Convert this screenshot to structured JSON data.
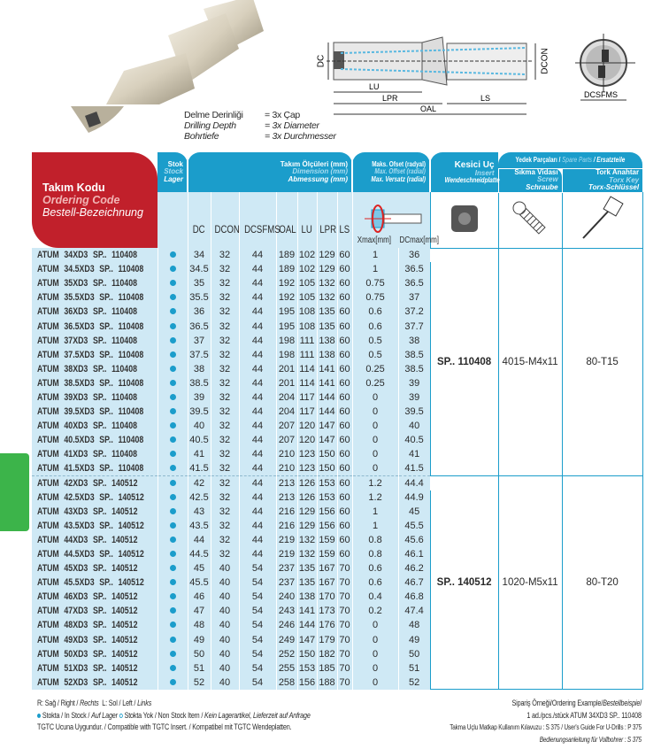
{
  "depth": {
    "rows": [
      {
        "label": "Delme Derinliği",
        "value": "= 3x Çap"
      },
      {
        "label": "Drilling Depth",
        "value": "= 3x Diameter"
      },
      {
        "label": "Bohrtiefe",
        "value": "= 3x Durchmesser"
      }
    ]
  },
  "diagram": {
    "labels": {
      "dc": "DC",
      "dcon": "DCON",
      "lu": "LU",
      "lpr": "LPR",
      "ls": "LS",
      "oal": "OAL",
      "dcsfms": "DCSFMS"
    }
  },
  "header": {
    "code": {
      "tr": "Takım Kodu",
      "en": "Ordering Code",
      "de": "Bestell-Bezeichnung"
    },
    "stock": {
      "tr": "Stok",
      "en": "Stock",
      "de": "Lager"
    },
    "dimension": {
      "tr": "Takım Ölçüleri (mm)",
      "en": "Dimension (mm)",
      "de": "Abmessung (mm)"
    },
    "offset": {
      "tr": "Maks. Ofset (radyal)",
      "en": "Max. Offset (radial)",
      "de": "Max. Versatz (radial)",
      "xmax": "Xmax[mm]",
      "dcmax": "DCmax[mm]"
    },
    "insert": {
      "tr": "Kesici Uç",
      "en": "Insert",
      "de": "Wendeschneidplatte"
    },
    "spare": {
      "tr": "Yedek Parçaları /",
      "en": "Spare Parts",
      "de": "/ Ersatzteile"
    },
    "screw": {
      "tr": "Sıkma Vidası",
      "en": "Screw",
      "de": "Schraube"
    },
    "key": {
      "tr": "Tork Anahtar",
      "en": "Torx Key",
      "de": "Torx-Schlüssel"
    },
    "columns": [
      "DC",
      "DCON",
      "DCSFMS",
      "OAL",
      "LU",
      "LPR",
      "LS"
    ]
  },
  "groups": [
    {
      "insert": "SP.. 110408",
      "screw": "4015-M4x11",
      "key": "80-T15",
      "rows": [
        [
          "ATUM 34XD3 SP.. 110408",
          "34",
          "32",
          "44",
          "189",
          "102",
          "129",
          "60",
          "1",
          "36"
        ],
        [
          "ATUM 34.5XD3 SP.. 110408",
          "34.5",
          "32",
          "44",
          "189",
          "102",
          "129",
          "60",
          "1",
          "36.5"
        ],
        [
          "ATUM 35XD3 SP.. 110408",
          "35",
          "32",
          "44",
          "192",
          "105",
          "132",
          "60",
          "0.75",
          "36.5"
        ],
        [
          "ATUM 35.5XD3 SP.. 110408",
          "35.5",
          "32",
          "44",
          "192",
          "105",
          "132",
          "60",
          "0.75",
          "37"
        ],
        [
          "ATUM 36XD3 SP.. 110408",
          "36",
          "32",
          "44",
          "195",
          "108",
          "135",
          "60",
          "0.6",
          "37.2"
        ],
        [
          "ATUM 36.5XD3 SP.. 110408",
          "36.5",
          "32",
          "44",
          "195",
          "108",
          "135",
          "60",
          "0.6",
          "37.7"
        ],
        [
          "ATUM 37XD3 SP.. 110408",
          "37",
          "32",
          "44",
          "198",
          "111",
          "138",
          "60",
          "0.5",
          "38"
        ],
        [
          "ATUM 37.5XD3 SP.. 110408",
          "37.5",
          "32",
          "44",
          "198",
          "111",
          "138",
          "60",
          "0.5",
          "38.5"
        ],
        [
          "ATUM 38XD3 SP.. 110408",
          "38",
          "32",
          "44",
          "201",
          "114",
          "141",
          "60",
          "0.25",
          "38.5"
        ],
        [
          "ATUM 38.5XD3 SP.. 110408",
          "38.5",
          "32",
          "44",
          "201",
          "114",
          "141",
          "60",
          "0.25",
          "39"
        ],
        [
          "ATUM 39XD3 SP.. 110408",
          "39",
          "32",
          "44",
          "204",
          "117",
          "144",
          "60",
          "0",
          "39"
        ],
        [
          "ATUM 39.5XD3 SP.. 110408",
          "39.5",
          "32",
          "44",
          "204",
          "117",
          "144",
          "60",
          "0",
          "39.5"
        ],
        [
          "ATUM 40XD3 SP.. 110408",
          "40",
          "32",
          "44",
          "207",
          "120",
          "147",
          "60",
          "0",
          "40"
        ],
        [
          "ATUM 40.5XD3 SP.. 110408",
          "40.5",
          "32",
          "44",
          "207",
          "120",
          "147",
          "60",
          "0",
          "40.5"
        ],
        [
          "ATUM 41XD3 SP.. 110408",
          "41",
          "32",
          "44",
          "210",
          "123",
          "150",
          "60",
          "0",
          "41"
        ],
        [
          "ATUM 41.5XD3 SP.. 110408",
          "41.5",
          "32",
          "44",
          "210",
          "123",
          "150",
          "60",
          "0",
          "41.5"
        ]
      ]
    },
    {
      "insert": "SP.. 140512",
      "screw": "1020-M5x11",
      "key": "80-T20",
      "rows": [
        [
          "ATUM 42XD3 SP.. 140512",
          "42",
          "32",
          "44",
          "213",
          "126",
          "153",
          "60",
          "1.2",
          "44.4"
        ],
        [
          "ATUM 42.5XD3 SP.. 140512",
          "42.5",
          "32",
          "44",
          "213",
          "126",
          "153",
          "60",
          "1.2",
          "44.9"
        ],
        [
          "ATUM 43XD3 SP.. 140512",
          "43",
          "32",
          "44",
          "216",
          "129",
          "156",
          "60",
          "1",
          "45"
        ],
        [
          "ATUM 43.5XD3 SP.. 140512",
          "43.5",
          "32",
          "44",
          "216",
          "129",
          "156",
          "60",
          "1",
          "45.5"
        ],
        [
          "ATUM 44XD3 SP.. 140512",
          "44",
          "32",
          "44",
          "219",
          "132",
          "159",
          "60",
          "0.8",
          "45.6"
        ],
        [
          "ATUM 44.5XD3 SP.. 140512",
          "44.5",
          "32",
          "44",
          "219",
          "132",
          "159",
          "60",
          "0.8",
          "46.1"
        ],
        [
          "ATUM 45XD3 SP.. 140512",
          "45",
          "40",
          "54",
          "237",
          "135",
          "167",
          "70",
          "0.6",
          "46.2"
        ],
        [
          "ATUM 45.5XD3 SP.. 140512",
          "45.5",
          "40",
          "54",
          "237",
          "135",
          "167",
          "70",
          "0.6",
          "46.7"
        ],
        [
          "ATUM 46XD3 SP.. 140512",
          "46",
          "40",
          "54",
          "240",
          "138",
          "170",
          "70",
          "0.4",
          "46.8"
        ],
        [
          "ATUM 47XD3 SP.. 140512",
          "47",
          "40",
          "54",
          "243",
          "141",
          "173",
          "70",
          "0.2",
          "47.4"
        ],
        [
          "ATUM 48XD3 SP.. 140512",
          "48",
          "40",
          "54",
          "246",
          "144",
          "176",
          "70",
          "0",
          "48"
        ],
        [
          "ATUM 49XD3 SP.. 140512",
          "49",
          "40",
          "54",
          "249",
          "147",
          "179",
          "70",
          "0",
          "49"
        ],
        [
          "ATUM 50XD3 SP.. 140512",
          "50",
          "40",
          "54",
          "252",
          "150",
          "182",
          "70",
          "0",
          "50"
        ],
        [
          "ATUM 51XD3 SP.. 140512",
          "51",
          "40",
          "54",
          "255",
          "153",
          "185",
          "70",
          "0",
          "51"
        ],
        [
          "ATUM 52XD3 SP.. 140512",
          "52",
          "40",
          "54",
          "258",
          "156",
          "188",
          "70",
          "0",
          "52"
        ]
      ]
    }
  ],
  "footer": {
    "hand": {
      "tr": "R: Sağ / Right /",
      "de": "Rechts",
      "tr2": "L: Sol / Left /",
      "de2": "Links"
    },
    "stock": {
      "in": "Stokta / In Stock /",
      "in_de": "Auf Lager",
      "out": "Stokta Yok / Non Stock Item /",
      "out_de": "Kein Lagerartikel, Lieferzeit auf Anfrage"
    },
    "compat": "TGTC Ucuna Uygundur. / Compatible with TGTC Insert. / Kompatibel mit TGTC Wendeplatten.",
    "example_label": "Sipariş Örneği/Ordering Example/",
    "example_label_de": "Bestellbeispiel",
    "example": "1 ad./pcs./stück  ATUM 34XD3 SP.. 110408",
    "guide": "Takma Uçlu Matkap Kullanım Kılavuzu : S 375 / User's Guide For U-Drills : P 375",
    "guide_de": "Bedienungsanleitung für Vollbohrer : S 375"
  },
  "colors": {
    "header_blue": "#1b9dcb",
    "row_bg": "#cfe9f5",
    "code_red": "#c1202b",
    "tab_green": "#3cb44a",
    "stock_dot": "#1b9dcb"
  }
}
